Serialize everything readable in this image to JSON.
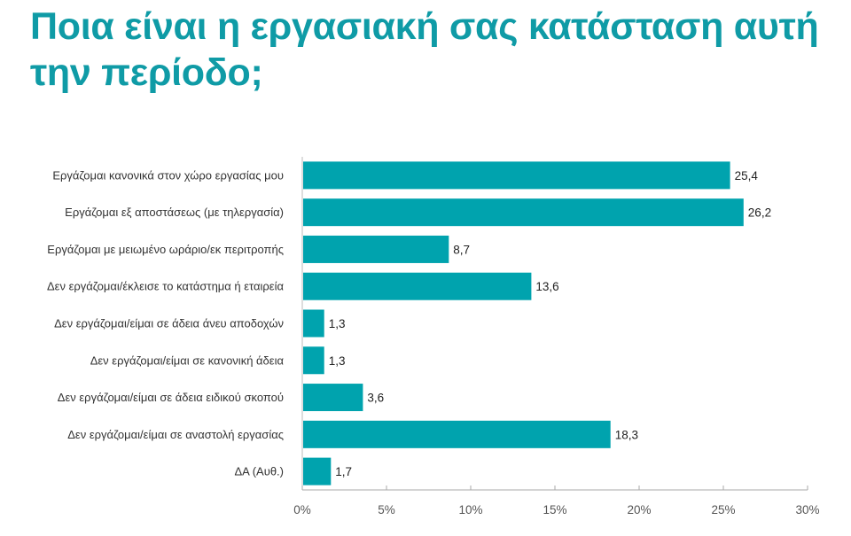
{
  "chart_data": {
    "type": "bar",
    "orientation": "horizontal",
    "title": "Ποια είναι η εργασιακή σας κατάσταση αυτή την περίοδο;",
    "categories": [
      "Εργάζομαι κανονικά στον χώρο εργασίας μου",
      "Εργάζομαι εξ αποστάσεως (με τηλεργασία)",
      "Εργάζομαι με μειωμένο ωράριο/εκ περιτροπής",
      "Δεν εργάζομαι/έκλεισε το κατάστημα ή εταιρεία",
      "Δεν εργάζομαι/είμαι σε άδεια άνευ αποδοχών",
      "Δεν εργάζομαι/είμαι σε κανονική άδεια",
      "Δεν εργάζομαι/είμαι σε άδεια ειδικού σκοπού",
      "Δεν εργάζομαι/είμαι σε αναστολή εργασίας",
      "ΔΑ (Αυθ.)"
    ],
    "values": [
      25.4,
      26.2,
      8.7,
      13.6,
      1.3,
      1.3,
      3.6,
      18.3,
      1.7
    ],
    "value_labels": [
      "25,4",
      "26,2",
      "8,7",
      "13,6",
      "1,3",
      "1,3",
      "3,6",
      "18,3",
      "1,7"
    ],
    "xlabel": "",
    "ylabel": "",
    "xlim": [
      0,
      30
    ],
    "xticks": [
      0,
      5,
      10,
      15,
      20,
      25,
      30
    ],
    "xtick_labels": [
      "0%",
      "5%",
      "10%",
      "15%",
      "20%",
      "25%",
      "30%"
    ],
    "grid": false,
    "colors": {
      "bar": "#00a3ae",
      "title": "#0f9ba6"
    }
  }
}
